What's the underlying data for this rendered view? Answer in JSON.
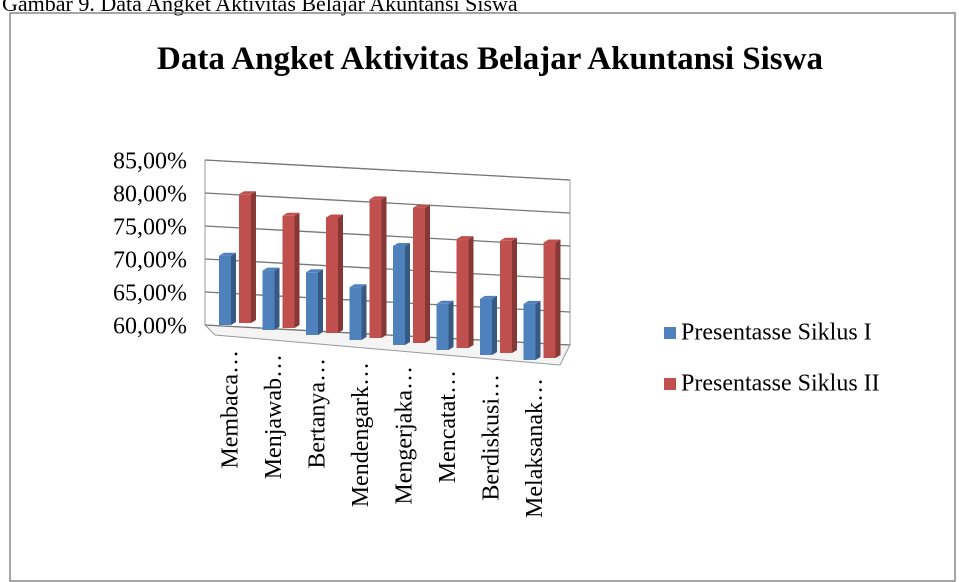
{
  "caption": "Gambar 9. Data Angket Aktivitas Belajar Akuntansi Siswa",
  "chart_data": {
    "type": "bar3d",
    "title": "Data Angket Aktivitas Belajar Akuntansi Siswa",
    "categories": [
      "Membaca…",
      "Menjawab…",
      "Bertanya…",
      "Mendengark…",
      "Mengerjaka…",
      "Mencatat…",
      "Berdiskusi…",
      "Melaksanak…"
    ],
    "series": [
      {
        "name": "Presentasse Siklus I",
        "color": "#4f81bd",
        "values": [
          70.5,
          69,
          69.5,
          68,
          75,
          67,
          68.5,
          68.5
        ]
      },
      {
        "name": "Presentasse Siklus II",
        "color": "#c0504d",
        "values": [
          79.5,
          77,
          77.5,
          81,
          80.5,
          76.5,
          77,
          77.5
        ]
      }
    ],
    "ylim": [
      60,
      85
    ],
    "yticks": [
      {
        "value": 60,
        "label": "60,00%"
      },
      {
        "value": 65,
        "label": "65,00%"
      },
      {
        "value": 70,
        "label": "70,00%"
      },
      {
        "value": 75,
        "label": "75,00%"
      },
      {
        "value": 80,
        "label": "80,00%"
      },
      {
        "value": 85,
        "label": "85,00%"
      }
    ],
    "grid": true,
    "legend": "right"
  }
}
